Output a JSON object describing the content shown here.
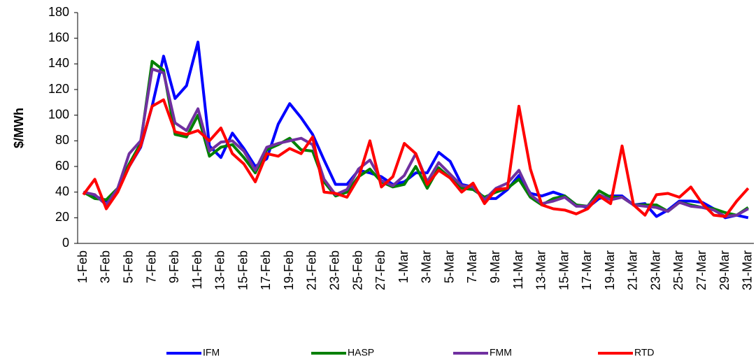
{
  "chart_data": {
    "type": "line",
    "y_label": "$/MWh",
    "categories": [
      "1-Feb",
      null,
      "3-Feb",
      null,
      "5-Feb",
      null,
      "7-Feb",
      null,
      "9-Feb",
      null,
      "11-Feb",
      null,
      "13-Feb",
      null,
      "15-Feb",
      null,
      "17-Feb",
      null,
      "19-Feb",
      null,
      "21-Feb",
      null,
      "23-Feb",
      null,
      "25-Feb",
      null,
      "27-Feb",
      null,
      "1-Mar",
      null,
      "3-Mar",
      null,
      "5-Mar",
      null,
      "7-Mar",
      null,
      "9-Mar",
      null,
      "11-Mar",
      null,
      "13-Mar",
      null,
      "15-Mar",
      null,
      "17-Mar",
      null,
      "19-Mar",
      null,
      "21-Mar",
      null,
      "23-Mar",
      null,
      "25-Mar",
      null,
      "27-Mar",
      null,
      "29-Mar",
      null,
      "31-Mar"
    ],
    "series": [
      {
        "name": "IFM",
        "color": "#0000ff",
        "values": [
          40,
          37,
          33,
          42,
          60,
          75,
          107,
          146,
          113,
          123,
          157,
          76,
          67,
          86,
          74,
          60,
          66,
          93,
          109,
          98,
          85,
          65,
          46,
          46,
          57,
          55,
          52,
          46,
          48,
          55,
          55,
          71,
          64,
          46,
          44,
          35,
          35,
          42,
          53,
          39,
          37,
          40,
          37,
          30,
          28,
          35,
          37,
          37,
          30,
          31,
          21,
          26,
          33,
          33,
          32,
          27,
          20,
          22,
          20
        ]
      },
      {
        "name": "HASP",
        "color": "#008000",
        "values": [
          40,
          35,
          34,
          43,
          62,
          78,
          142,
          135,
          85,
          83,
          100,
          68,
          75,
          77,
          67,
          55,
          73,
          77,
          82,
          73,
          72,
          48,
          37,
          40,
          52,
          58,
          48,
          44,
          46,
          60,
          43,
          59,
          51,
          43,
          42,
          36,
          40,
          43,
          50,
          36,
          30,
          35,
          37,
          30,
          29,
          41,
          36,
          36,
          30,
          30,
          30,
          25,
          32,
          30,
          28,
          27,
          24,
          22,
          28
        ]
      },
      {
        "name": "FMM",
        "color": "#7030a0",
        "values": [
          40,
          38,
          30,
          43,
          70,
          80,
          136,
          133,
          94,
          88,
          105,
          72,
          79,
          80,
          72,
          57,
          75,
          78,
          80,
          82,
          77,
          50,
          38,
          42,
          58,
          65,
          49,
          45,
          53,
          70,
          48,
          63,
          54,
          45,
          44,
          34,
          43,
          47,
          57,
          38,
          31,
          33,
          36,
          29,
          29,
          38,
          34,
          36,
          30,
          29,
          28,
          25,
          32,
          29,
          28,
          26,
          21,
          22,
          27
        ]
      },
      {
        "name": "RTD",
        "color": "#ff0000",
        "values": [
          38,
          50,
          27,
          40,
          60,
          76,
          107,
          112,
          87,
          85,
          88,
          80,
          90,
          70,
          62,
          48,
          70,
          68,
          74,
          70,
          83,
          40,
          39,
          36,
          51,
          80,
          44,
          52,
          78,
          70,
          46,
          57,
          51,
          40,
          47,
          31,
          42,
          43,
          107,
          58,
          30,
          27,
          26,
          23,
          27,
          37,
          31,
          76,
          30,
          22,
          38,
          39,
          36,
          44,
          31,
          22,
          21,
          33,
          43
        ]
      }
    ],
    "ylim": [
      0,
      180
    ],
    "yticks": [
      0,
      20,
      40,
      60,
      80,
      100,
      120,
      140,
      160,
      180
    ],
    "grid": false
  }
}
